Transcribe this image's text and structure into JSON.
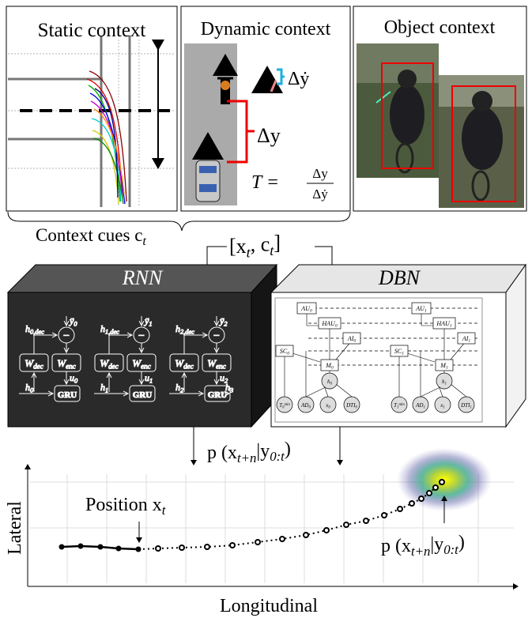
{
  "panels": [
    {
      "title": "Static context"
    },
    {
      "title": "Dynamic context",
      "delta_ydot": "Δẏ",
      "delta_y": "Δy",
      "ttc": {
        "lhs": "T =",
        "num": "Δy",
        "den": "Δẏ"
      }
    },
    {
      "title": "Object context"
    }
  ],
  "context_cues": [
    {
      "t": "Context cues c"
    },
    {
      "s": "t"
    }
  ],
  "input": [
    {
      "t": "[x"
    },
    {
      "s": "t"
    },
    {
      "t": ", c"
    },
    {
      "s": "t"
    },
    {
      "t": "]"
    }
  ],
  "rnn": {
    "title": "RNN",
    "gru": "GRU",
    "minus": "−",
    "units": [
      {
        "h_dec": [
          {
            "t": "h"
          },
          {
            "s": "0,dec"
          }
        ],
        "ybar": [
          {
            "t": "ȳ"
          },
          {
            "s": "0"
          }
        ],
        "u": [
          {
            "t": "u"
          },
          {
            "s": "0"
          }
        ],
        "h": [
          {
            "t": "h"
          },
          {
            "s": "0"
          }
        ]
      },
      {
        "h_dec": [
          {
            "t": "h"
          },
          {
            "s": "1,dec"
          }
        ],
        "ybar": [
          {
            "t": "ȳ"
          },
          {
            "s": "1"
          }
        ],
        "u": [
          {
            "t": "u"
          },
          {
            "s": "1"
          }
        ],
        "h": [
          {
            "t": "h"
          },
          {
            "s": "1"
          }
        ]
      },
      {
        "h_dec": [
          {
            "t": "h"
          },
          {
            "s": "2,dec"
          }
        ],
        "ybar": [
          {
            "t": "ȳ"
          },
          {
            "s": "2"
          }
        ],
        "u": [
          {
            "t": "u"
          },
          {
            "s": "2"
          }
        ],
        "h": [
          {
            "t": "h"
          },
          {
            "s": "2"
          }
        ]
      }
    ],
    "w_dec": [
      {
        "t": "W"
      },
      {
        "s": "dec"
      }
    ],
    "w_enc": [
      {
        "t": "W"
      },
      {
        "s": "enc"
      }
    ],
    "h_out": [
      {
        "t": "h"
      },
      {
        "s": "3"
      }
    ]
  },
  "dbn": {
    "title": "DBN",
    "slices": [
      {
        "AU": [
          {
            "t": "AU"
          },
          {
            "s": "0"
          }
        ],
        "HAU": [
          {
            "t": "HAU"
          },
          {
            "s": "0"
          }
        ],
        "AI": [
          {
            "t": "AI"
          },
          {
            "s": "0"
          }
        ],
        "SC": [
          {
            "t": "SC"
          },
          {
            "s": "0"
          }
        ],
        "M": [
          {
            "t": "M"
          },
          {
            "s": "0"
          }
        ],
        "h": [
          {
            "t": "h"
          },
          {
            "s": "0"
          }
        ],
        "T": [
          {
            "t": "T"
          },
          {
            "s": "0"
          },
          {
            "sup": "min"
          }
        ],
        "AD": [
          {
            "t": "AD"
          },
          {
            "s": "0"
          }
        ],
        "x": [
          {
            "t": "x"
          },
          {
            "s": "0"
          }
        ],
        "DTI": [
          {
            "t": "DTI"
          },
          {
            "s": "0"
          }
        ]
      },
      {
        "AU": [
          {
            "t": "AU"
          },
          {
            "s": "1"
          }
        ],
        "HAU": [
          {
            "t": "HAU"
          },
          {
            "s": "1"
          }
        ],
        "AI": [
          {
            "t": "AI"
          },
          {
            "s": "1"
          }
        ],
        "SC": [
          {
            "t": "SC"
          },
          {
            "s": "1"
          }
        ],
        "M": [
          {
            "t": "M"
          },
          {
            "s": "1"
          }
        ],
        "h": [
          {
            "t": "h"
          },
          {
            "s": "1"
          }
        ],
        "T": [
          {
            "t": "T"
          },
          {
            "s": "1"
          },
          {
            "sup": "min"
          }
        ],
        "AD": [
          {
            "t": "AD"
          },
          {
            "s": "1"
          }
        ],
        "x": [
          {
            "t": "x"
          },
          {
            "s": "1"
          }
        ],
        "DTI": [
          {
            "t": "DTI"
          },
          {
            "s": "1"
          }
        ]
      }
    ]
  },
  "output": [
    {
      "t": "p (x"
    },
    {
      "s": "t+n"
    },
    {
      "t": "|y"
    },
    {
      "s": "0:t"
    },
    {
      "t": ")"
    }
  ],
  "plot": {
    "y_label": "Lateral",
    "x_label": "Longitudinal",
    "position_label": [
      {
        "t": "Position x"
      },
      {
        "s": "t"
      }
    ],
    "prediction_label": [
      {
        "t": "p (x"
      },
      {
        "s": "t+n"
      },
      {
        "t": "|y"
      },
      {
        "s": "0:t"
      },
      {
        "t": ")"
      }
    ]
  }
}
